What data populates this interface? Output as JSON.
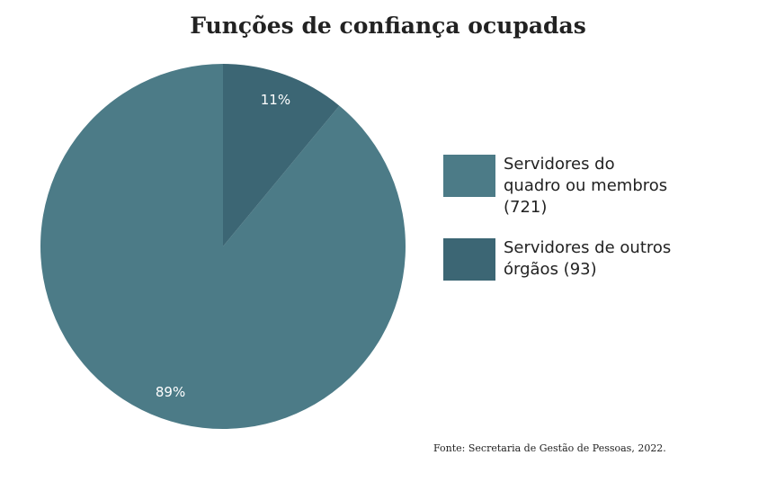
{
  "chart_data": {
    "type": "pie",
    "title": "Funções de confiança ocupadas",
    "categories": [
      "Servidores do quadro ou membros (721)",
      "Servidores de outros órgãos (93)"
    ],
    "values": [
      89,
      11
    ],
    "value_labels": [
      "89%",
      "11%"
    ],
    "colors": [
      "#4c7b87",
      "#3c6674"
    ],
    "source": "Fonte: Secretaria de Gestão de Pessoas, 2022."
  }
}
